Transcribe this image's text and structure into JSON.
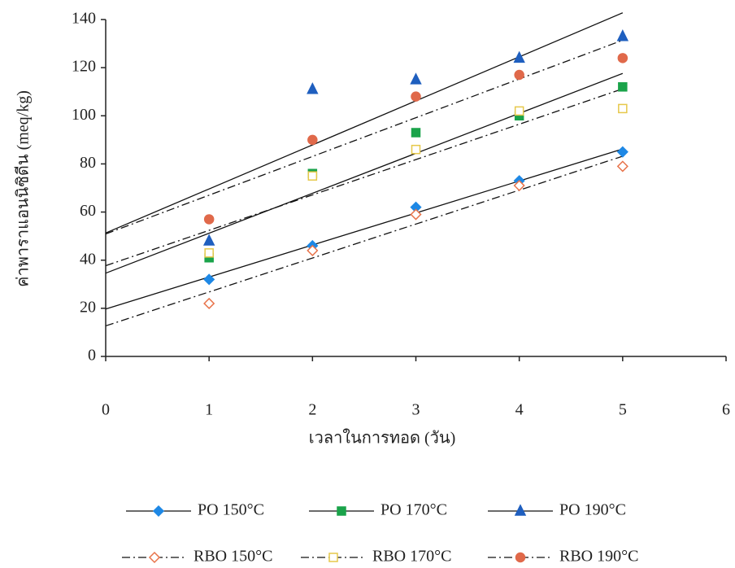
{
  "chart_data": {
    "type": "scatter",
    "x_label": "เวลาในการทอด (วัน)",
    "y_label": "ค่าพาราแอนนิซิดีน (meq/kg)",
    "x": [
      1,
      2,
      3,
      4,
      5
    ],
    "xlim": [
      0,
      6
    ],
    "xticks": [
      0,
      1,
      2,
      3,
      4,
      5,
      6
    ],
    "ylim": [
      0,
      140
    ],
    "yticks": [
      0,
      20,
      40,
      60,
      80,
      100,
      120,
      140
    ],
    "trendline": true,
    "series": [
      {
        "name": "PO 150°C",
        "color": "#1e88e5",
        "marker": "diamond",
        "filled": true,
        "line": "solid",
        "values": [
          32,
          46,
          62,
          73,
          85
        ]
      },
      {
        "name": "PO 170°C",
        "color": "#1aa34a",
        "marker": "square",
        "filled": true,
        "line": "solid",
        "values": [
          41,
          76,
          93,
          100,
          112
        ]
      },
      {
        "name": "PO 190°C",
        "color": "#1f5fbf",
        "marker": "triangle",
        "filled": true,
        "line": "solid",
        "values": [
          48,
          111,
          115,
          124,
          133
        ]
      },
      {
        "name": "RBO 150°C",
        "color": "#e8734a",
        "marker": "diamond",
        "filled": false,
        "line": "dashdot",
        "values": [
          22,
          44,
          59,
          71,
          79
        ]
      },
      {
        "name": "RBO 170°C",
        "color": "#e6c84a",
        "marker": "square",
        "filled": false,
        "line": "dashdot",
        "values": [
          43,
          75,
          86,
          102,
          103
        ]
      },
      {
        "name": "RBO 190°C",
        "color": "#e0694a",
        "marker": "circle",
        "filled": true,
        "line": "dashdot",
        "values": [
          57,
          90,
          108,
          117,
          124
        ]
      }
    ]
  }
}
